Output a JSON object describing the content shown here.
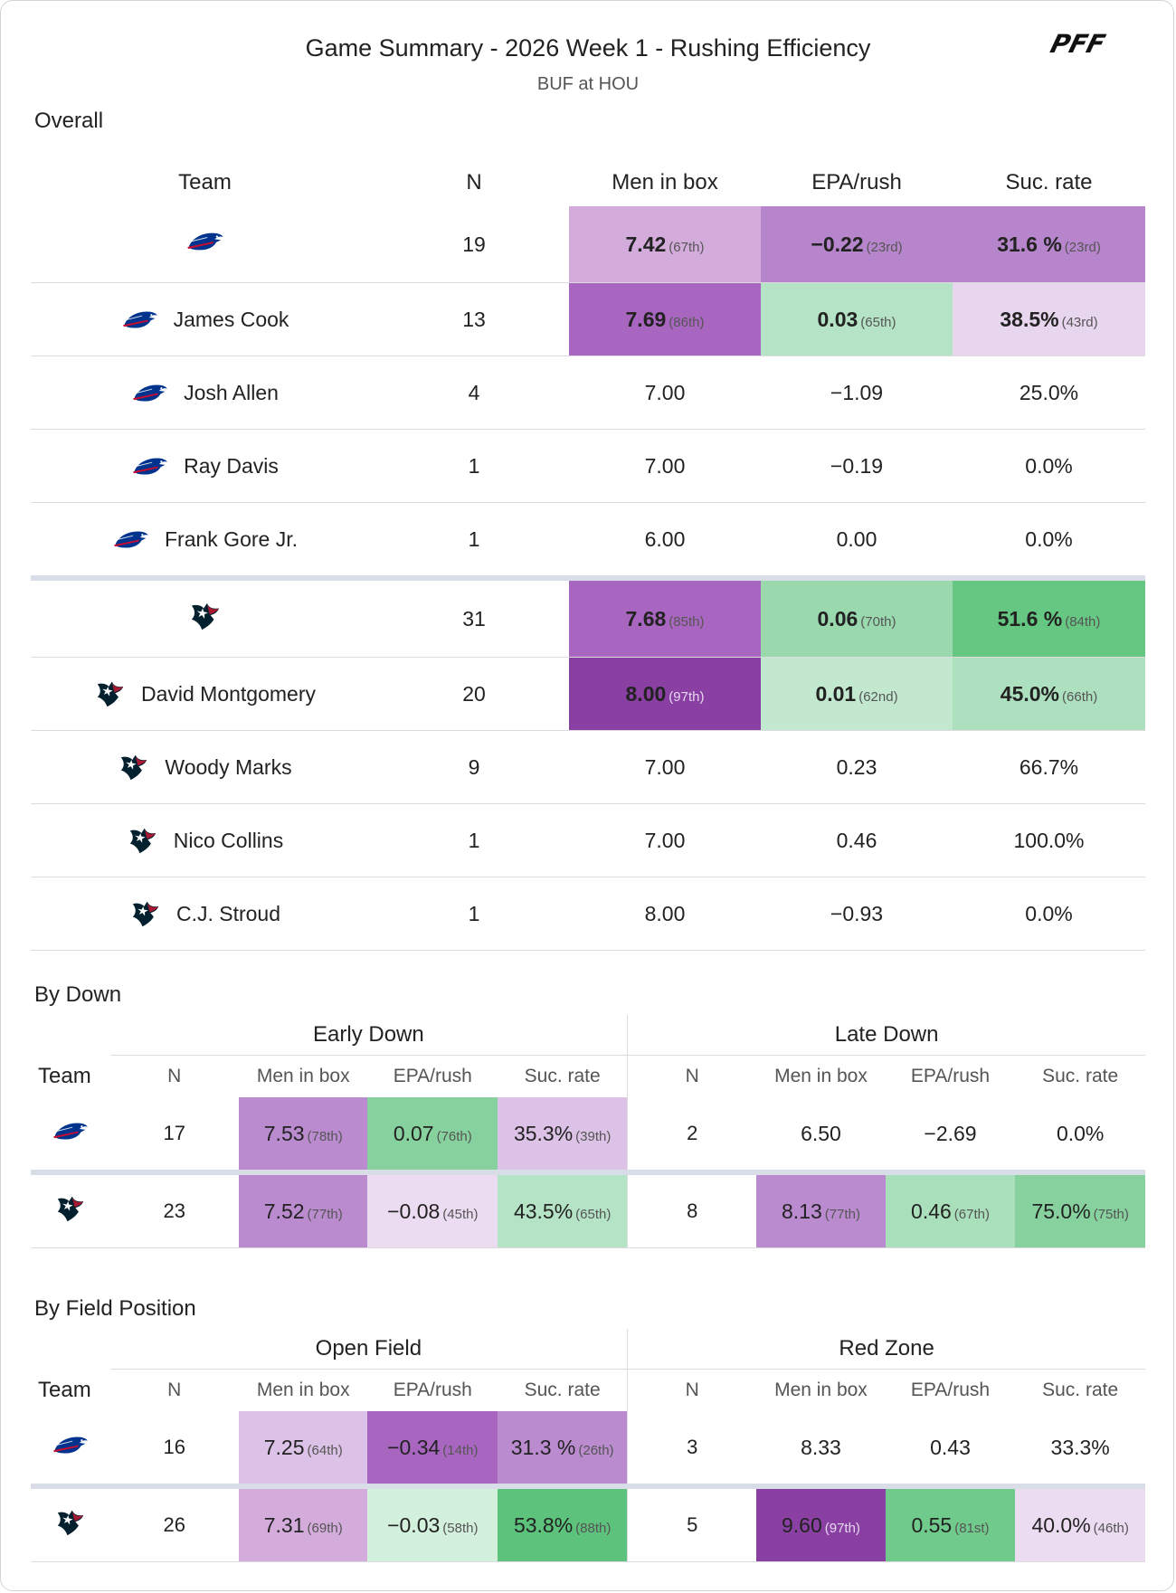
{
  "header": {
    "title": "Game Summary - 2026 Week 1 - Rushing Efficiency",
    "subtitle": "BUF at HOU",
    "brand": "PFF"
  },
  "overall": {
    "section_title": "Overall",
    "columns": [
      "Team",
      "N",
      "Men in box",
      "EPA/rush",
      "Suc. rate"
    ],
    "rows": [
      {
        "team": "BUF",
        "player": "",
        "n": "19",
        "box": "7.42",
        "box_rank": "(67th)",
        "epa": "−0.22",
        "epa_rank": "(23rd)",
        "suc": "31.6 %",
        "suc_rank": "(23rd)",
        "box_bg": "#d3acdc",
        "epa_bg": "#b785cc",
        "suc_bg": "#b785cc",
        "bold": true
      },
      {
        "team": "BUF",
        "player": "James Cook",
        "n": "13",
        "box": "7.69",
        "box_rank": "(86th)",
        "epa": "0.03",
        "epa_rank": "(65th)",
        "suc": "38.5%",
        "suc_rank": "(43rd)",
        "box_bg": "#a866c0",
        "epa_bg": "#b5e3c5",
        "suc_bg": "#e8d6ee",
        "bold": true
      },
      {
        "team": "BUF",
        "player": "Josh Allen",
        "n": "4",
        "box": "7.00",
        "epa": "−1.09",
        "suc": "25.0%"
      },
      {
        "team": "BUF",
        "player": "Ray Davis",
        "n": "1",
        "box": "7.00",
        "epa": "−0.19",
        "suc": "0.0%"
      },
      {
        "team": "BUF",
        "player": "Frank Gore Jr.",
        "n": "1",
        "box": "6.00",
        "epa": "0.00",
        "suc": "0.0%"
      },
      {
        "team": "HOU",
        "player": "",
        "n": "31",
        "box": "7.68",
        "box_rank": "(85th)",
        "epa": "0.06",
        "epa_rank": "(70th)",
        "suc": "51.6 %",
        "suc_rank": "(84th)",
        "box_bg": "#a866c0",
        "epa_bg": "#9ad9ae",
        "suc_bg": "#66c783",
        "bold": true
      },
      {
        "team": "HOU",
        "player": "David Montgomery",
        "n": "20",
        "box": "8.00",
        "box_rank": "(97th)",
        "epa": "0.01",
        "epa_rank": "(62nd)",
        "suc": "45.0%",
        "suc_rank": "(66th)",
        "box_bg": "#8a3fa3",
        "epa_bg": "#c2e8cf",
        "suc_bg": "#ade0bf",
        "bold": true,
        "dark_box": true
      },
      {
        "team": "HOU",
        "player": "Woody Marks",
        "n": "9",
        "box": "7.00",
        "epa": "0.23",
        "suc": "66.7%"
      },
      {
        "team": "HOU",
        "player": "Nico Collins",
        "n": "1",
        "box": "7.00",
        "epa": "0.46",
        "suc": "100.0%"
      },
      {
        "team": "HOU",
        "player": "C.J. Stroud",
        "n": "1",
        "box": "8.00",
        "epa": "−0.93",
        "suc": "0.0%"
      }
    ]
  },
  "by_down": {
    "section_title": "By Down",
    "group_left": "Early Down",
    "group_right": "Late Down",
    "team_header": "Team",
    "columns": [
      "N",
      "Men in box",
      "EPA/rush",
      "Suc. rate"
    ],
    "rows": [
      {
        "team": "BUF",
        "left": {
          "n": "17",
          "box": "7.53",
          "box_rank": "(78th)",
          "epa": "0.07",
          "epa_rank": "(76th)",
          "suc": "35.3%",
          "suc_rank": "(39th)",
          "box_bg": "#bb8bcf",
          "epa_bg": "#86d19d",
          "suc_bg": "#dcc2e6"
        },
        "right": {
          "n": "2",
          "box": "6.50",
          "epa": "−2.69",
          "suc": "0.0%"
        }
      },
      {
        "team": "HOU",
        "left": {
          "n": "23",
          "box": "7.52",
          "box_rank": "(77th)",
          "epa": "−0.08",
          "epa_rank": "(45th)",
          "suc": "43.5%",
          "suc_rank": "(65th)",
          "box_bg": "#bb8bcf",
          "epa_bg": "#ecdcf1",
          "suc_bg": "#b5e3c5"
        },
        "right": {
          "n": "8",
          "box": "8.13",
          "box_rank": "(77th)",
          "epa": "0.46",
          "epa_rank": "(67th)",
          "suc": "75.0%",
          "suc_rank": "(75th)",
          "box_bg": "#bb8bcf",
          "epa_bg": "#a9dfba",
          "suc_bg": "#86d19d"
        }
      }
    ]
  },
  "by_field": {
    "section_title": "By Field Position",
    "group_left": "Open Field",
    "group_right": "Red Zone",
    "team_header": "Team",
    "columns": [
      "N",
      "Men in box",
      "EPA/rush",
      "Suc. rate"
    ],
    "rows": [
      {
        "team": "BUF",
        "left": {
          "n": "16",
          "box": "7.25",
          "box_rank": "(64th)",
          "epa": "−0.34",
          "epa_rank": "(14th)",
          "suc": "31.3 %",
          "suc_rank": "(26th)",
          "box_bg": "#dcc2e6",
          "epa_bg": "#a866c0",
          "suc_bg": "#bb8bcf"
        },
        "right": {
          "n": "3",
          "box": "8.33",
          "epa": "0.43",
          "suc": "33.3%"
        }
      },
      {
        "team": "HOU",
        "left": {
          "n": "26",
          "box": "7.31",
          "box_rank": "(69th)",
          "epa": "−0.03",
          "epa_rank": "(58th)",
          "suc": "53.8%",
          "suc_rank": "(88th)",
          "box_bg": "#d3acdc",
          "epa_bg": "#d3f0dc",
          "suc_bg": "#5cc27c",
          "dark_suc": true
        },
        "right": {
          "n": "5",
          "box": "9.60",
          "box_rank": "(97th)",
          "epa": "0.55",
          "epa_rank": "(81st)",
          "suc": "40.0%",
          "suc_rank": "(46th)",
          "box_bg": "#8a3fa3",
          "epa_bg": "#6fca8b",
          "suc_bg": "#ecdcf1",
          "dark_box": true
        }
      }
    ]
  },
  "colors": {
    "bills_blue": "#00338d",
    "bills_red": "#c60c30",
    "texans_navy": "#03202f",
    "texans_red": "#a71930"
  }
}
